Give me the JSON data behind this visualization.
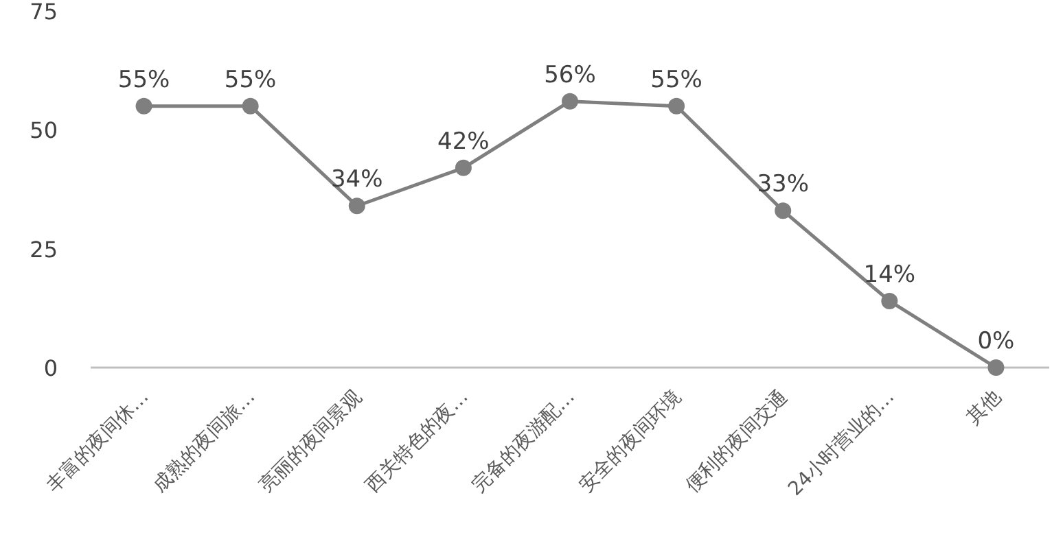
{
  "chart_data": {
    "type": "line",
    "categories": [
      "丰富的夜间休…",
      "成熟的夜间旅…",
      "亮丽的夜间景观",
      "西关特色的夜…",
      "完备的夜游配…",
      "安全的夜间环境",
      "便利的夜间交通",
      "24小时营业的…",
      "其他"
    ],
    "series": [
      {
        "color": "#7f7f7f",
        "values": [
          55,
          55,
          34,
          42,
          56,
          55,
          33,
          14,
          0
        ],
        "value_labels": [
          "55%",
          "55%",
          "34%",
          "42%",
          "56%",
          "55%",
          "33%",
          "14%",
          "0%"
        ]
      }
    ],
    "ylim": [
      0,
      75
    ],
    "yticks": [
      0,
      25,
      50,
      75
    ],
    "grid": false,
    "marker": "circle",
    "line_style": "solid"
  }
}
